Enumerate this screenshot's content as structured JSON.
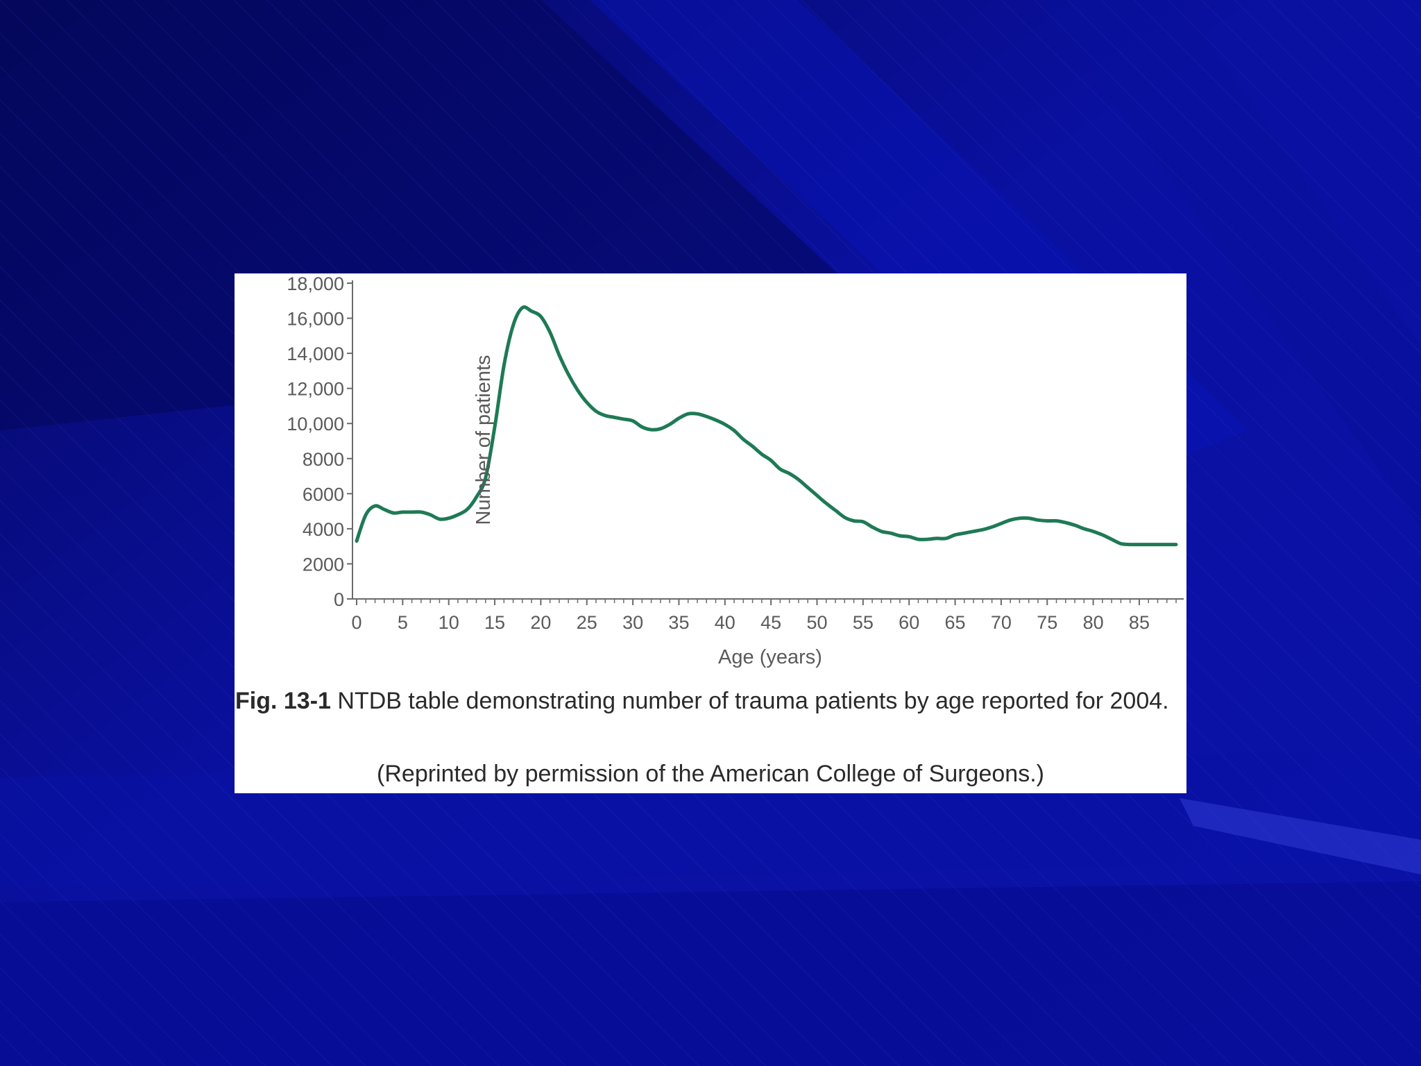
{
  "colors": {
    "background": "#0a0f8a",
    "panel": "#ffffff",
    "series": "#1e7a55",
    "axis": "#6a6a6a"
  },
  "figure": {
    "caption_label": "Fig. 13-1",
    "caption_text": " NTDB table demonstrating number of trauma patients by age reported for 2004.",
    "credit": "(Reprinted by permission of the American College of Surgeons.)"
  },
  "chart_data": {
    "type": "line",
    "title": "",
    "xlabel": "Age (years)",
    "ylabel": "Number of patients",
    "xlim": [
      0,
      89
    ],
    "ylim": [
      0,
      18000
    ],
    "x_ticks": [
      0,
      5,
      10,
      15,
      20,
      25,
      30,
      35,
      40,
      45,
      50,
      55,
      60,
      65,
      70,
      75,
      80,
      85
    ],
    "y_ticks": [
      0,
      2000,
      4000,
      6000,
      8000,
      10000,
      12000,
      14000,
      16000,
      18000
    ],
    "y_tick_labels": [
      "0",
      "2000",
      "4000",
      "6000",
      "8000",
      "10,000",
      "12,000",
      "14,000",
      "16,000",
      "18,000"
    ],
    "grid": false,
    "series": [
      {
        "x": [
          0,
          1,
          2,
          3,
          4,
          5,
          6,
          7,
          8,
          9,
          10,
          11,
          12,
          13,
          14,
          15,
          16,
          17,
          18,
          19,
          20,
          21,
          22,
          23,
          24,
          25,
          26,
          27,
          28,
          29,
          30,
          31,
          32,
          33,
          34,
          35,
          36,
          37,
          38,
          39,
          40,
          41,
          42,
          43,
          44,
          45,
          46,
          47,
          48,
          49,
          50,
          51,
          52,
          53,
          54,
          55,
          56,
          57,
          58,
          59,
          60,
          61,
          62,
          63,
          64,
          65,
          66,
          67,
          68,
          69,
          70,
          71,
          72,
          73,
          74,
          75,
          76,
          77,
          78,
          79,
          80,
          81,
          82,
          83,
          84,
          85,
          86,
          87,
          88,
          89
        ],
        "y": [
          3300,
          4800,
          5300,
          5100,
          4900,
          4950,
          4950,
          4950,
          4800,
          4550,
          4600,
          4800,
          5100,
          5800,
          6900,
          9800,
          13300,
          15600,
          16600,
          16400,
          16100,
          15200,
          13900,
          12800,
          11900,
          11200,
          10700,
          10450,
          10350,
          10250,
          10150,
          9800,
          9650,
          9700,
          9950,
          10300,
          10550,
          10550,
          10400,
          10200,
          9950,
          9600,
          9100,
          8700,
          8250,
          7900,
          7400,
          7150,
          6800,
          6350,
          5900,
          5450,
          5050,
          4650,
          4450,
          4400,
          4100,
          3850,
          3750,
          3600,
          3550,
          3400,
          3400,
          3450,
          3450,
          3650,
          3750,
          3850,
          3950,
          4100,
          4300,
          4500,
          4600,
          4600,
          4500,
          4450,
          4450,
          4350,
          4200,
          4000,
          3850,
          3650,
          3400,
          3150,
          3100,
          3100,
          3100,
          3100,
          3100,
          3100
        ]
      }
    ]
  }
}
